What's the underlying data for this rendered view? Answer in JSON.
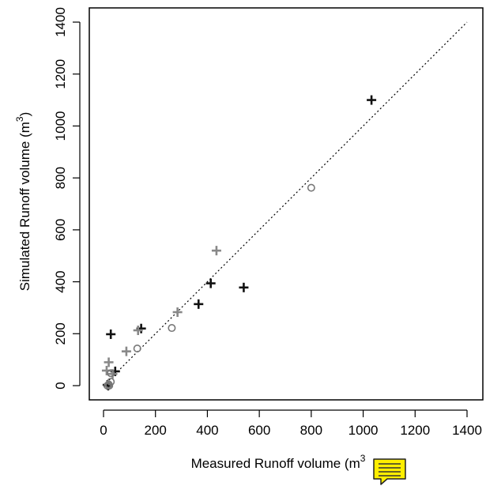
{
  "chart_data": {
    "type": "scatter",
    "title": "",
    "xlabel": "Measured Runoff volume (m",
    "xlabel_sup": "3",
    "ylabel": "Simulated Runoff volume (m",
    "ylabel_sup": "3",
    "ylabel_suffix": ")",
    "xlim": [
      0,
      1400
    ],
    "ylim": [
      0,
      1400
    ],
    "xticks": [
      "0",
      "200",
      "400",
      "600",
      "800",
      "1000",
      "1200",
      "1400"
    ],
    "yticks": [
      "0",
      "200",
      "400",
      "600",
      "800",
      "1000",
      "1200",
      "1400"
    ],
    "grid": false,
    "legend": "none",
    "reference_line": {
      "style": "dotted",
      "from": [
        0,
        0
      ],
      "to": [
        1400,
        1400
      ]
    },
    "series": [
      {
        "marker": "plus",
        "color": "#111111",
        "points": [
          [
            1032,
            1100
          ],
          [
            540,
            378
          ],
          [
            413,
            394
          ],
          [
            366,
            314
          ],
          [
            145,
            220
          ],
          [
            28,
            198
          ],
          [
            45,
            55
          ],
          [
            15,
            3
          ],
          [
            18,
            0
          ]
        ]
      },
      {
        "marker": "plus",
        "color": "#888888",
        "points": [
          [
            435,
            520
          ],
          [
            285,
            283
          ],
          [
            133,
            213
          ],
          [
            88,
            132
          ],
          [
            20,
            90
          ],
          [
            12,
            58
          ],
          [
            35,
            45
          ]
        ]
      },
      {
        "marker": "circle",
        "color": "#777777",
        "points": [
          [
            800,
            762
          ],
          [
            263,
            222
          ],
          [
            130,
            143
          ],
          [
            28,
            48
          ],
          [
            28,
            15
          ],
          [
            20,
            5
          ],
          [
            15,
            0
          ],
          [
            22,
            0
          ]
        ]
      }
    ]
  },
  "annotation": {
    "icon": "note-icon",
    "color": "#ffee00"
  }
}
